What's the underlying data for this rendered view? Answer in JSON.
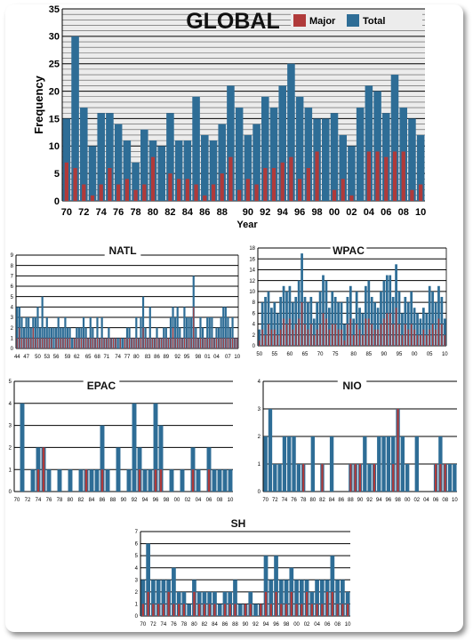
{
  "colors": {
    "major": "#b03a3a",
    "total": "#2e6d96",
    "grid": "#000000"
  },
  "legend": {
    "major_label": "Major",
    "total_label": "Total"
  },
  "chart_data": [
    {
      "type": "bar",
      "title": "GLOBAL",
      "xlabel": "Year",
      "ylabel": "Frequency",
      "ylim": [
        0,
        35
      ],
      "yticks": [
        0,
        5,
        10,
        15,
        20,
        25,
        30,
        35
      ],
      "grid": true,
      "legend_placement": "top-right",
      "x_start": 1970,
      "tick_labels": [
        "70",
        "72",
        "74",
        "76",
        "78",
        "80",
        "82",
        "84",
        "86",
        "88",
        "90",
        "92",
        "94",
        "96",
        "98",
        "00",
        "02",
        "04",
        "06",
        "08",
        "10"
      ],
      "series": [
        {
          "name": "Total",
          "values": [
            15,
            30,
            17,
            10,
            16,
            16,
            14,
            11,
            7,
            13,
            11,
            10,
            16,
            11,
            11,
            19,
            12,
            11,
            14,
            21,
            17,
            12,
            14,
            19,
            17,
            21,
            25,
            19,
            17,
            15,
            15,
            16,
            12,
            10,
            17,
            21,
            20,
            16,
            23,
            17,
            15,
            12
          ]
        },
        {
          "name": "Major",
          "values": [
            7,
            6,
            3,
            1,
            3,
            6,
            3,
            4,
            2,
            3,
            8,
            0,
            5,
            4,
            4,
            3,
            1,
            3,
            5,
            8,
            2,
            4,
            3,
            6,
            6,
            7,
            8,
            4,
            6,
            9,
            0,
            2,
            4,
            1,
            0,
            9,
            9,
            8,
            9,
            9,
            2,
            3
          ]
        }
      ]
    },
    {
      "type": "bar",
      "title": "NATL",
      "ylim": [
        0,
        9
      ],
      "yticks": [
        0,
        1,
        2,
        3,
        4,
        5,
        6,
        7,
        8,
        9
      ],
      "grid": true,
      "x_start": 1944,
      "tick_labels": [
        "44",
        "47",
        "50",
        "53",
        "56",
        "59",
        "62",
        "65",
        "68",
        "71",
        "74",
        "77",
        "80",
        "83",
        "86",
        "89",
        "92",
        "95",
        "98",
        "01",
        "04",
        "07",
        "10"
      ],
      "series": [
        {
          "name": "Total",
          "values": [
            4,
            4,
            3,
            2,
            3,
            3,
            2,
            3,
            3,
            4,
            2,
            5,
            2,
            3,
            2,
            2,
            2,
            2,
            3,
            2,
            2,
            3,
            2,
            2,
            1,
            1,
            2,
            2,
            2,
            3,
            2,
            1,
            3,
            2,
            1,
            3,
            1,
            3,
            1,
            1,
            2,
            1,
            1,
            1,
            1,
            1,
            1,
            1,
            2,
            2,
            1,
            1,
            3,
            1,
            3,
            5,
            2,
            1,
            4,
            1,
            1,
            2,
            1,
            1,
            2,
            2,
            1,
            3,
            4,
            3,
            4,
            2,
            1,
            4,
            3,
            3,
            3,
            7,
            2,
            1,
            3,
            2,
            1,
            3,
            3,
            3,
            1,
            2,
            2,
            3,
            4,
            4,
            3,
            2,
            3,
            1,
            1
          ]
        },
        {
          "name": "Major",
          "values": [
            1,
            2,
            1,
            1,
            1,
            1,
            1,
            2,
            1,
            1,
            1,
            1,
            1,
            1,
            1,
            1,
            0,
            1,
            1,
            1,
            1,
            1,
            1,
            1,
            0,
            1,
            1,
            1,
            1,
            1,
            1,
            1,
            1,
            1,
            1,
            1,
            1,
            1,
            1,
            1,
            1,
            1,
            1,
            1,
            0,
            1,
            0,
            1,
            1,
            1,
            1,
            1,
            1,
            1,
            1,
            2,
            1,
            1,
            1,
            1,
            1,
            1,
            1,
            1,
            1,
            1,
            1,
            1,
            2,
            1,
            1,
            1,
            1,
            1,
            1,
            1,
            1,
            4,
            1,
            1,
            1,
            1,
            1,
            1,
            1,
            1,
            1,
            1,
            1,
            1,
            1,
            1,
            1,
            1,
            1,
            1,
            1
          ]
        }
      ]
    },
    {
      "type": "bar",
      "title": "WPAC",
      "ylim": [
        0,
        18
      ],
      "yticks": [
        0,
        2,
        4,
        6,
        8,
        10,
        12,
        14,
        16,
        18
      ],
      "grid": true,
      "x_start": 1950,
      "tick_labels": [
        "50",
        "55",
        "60",
        "65",
        "70",
        "75",
        "80",
        "85",
        "90",
        "95",
        "00",
        "05",
        "10"
      ],
      "series": [
        {
          "name": "Total",
          "values": [
            3,
            8,
            9,
            10,
            7,
            8,
            6,
            9,
            11,
            10,
            11,
            8,
            9,
            12,
            17,
            9,
            8,
            9,
            5,
            8,
            10,
            13,
            12,
            7,
            10,
            9,
            8,
            8,
            4,
            9,
            11,
            5,
            10,
            7,
            6,
            11,
            12,
            9,
            8,
            7,
            10,
            12,
            13,
            13,
            9,
            15,
            10,
            6,
            9,
            8,
            10,
            7,
            6,
            5,
            7,
            6,
            11,
            10,
            8,
            11,
            9,
            5
          ]
        },
        {
          "name": "Major",
          "values": [
            1,
            3,
            2,
            4,
            3,
            3,
            2,
            3,
            5,
            4,
            5,
            3,
            4,
            5,
            8,
            4,
            3,
            4,
            2,
            3,
            4,
            6,
            5,
            3,
            4,
            4,
            3,
            3,
            1,
            4,
            5,
            2,
            4,
            3,
            2,
            5,
            5,
            4,
            3,
            3,
            4,
            5,
            6,
            6,
            4,
            7,
            4,
            2,
            4,
            3,
            4,
            3,
            2,
            2,
            3,
            2,
            3,
            4,
            3,
            5,
            4,
            2
          ]
        }
      ]
    },
    {
      "type": "bar",
      "title": "EPAC",
      "ylim": [
        0,
        5
      ],
      "yticks": [
        0,
        1,
        2,
        3,
        4,
        5
      ],
      "grid": true,
      "x_start": 1970,
      "tick_labels": [
        "70",
        "72",
        "74",
        "76",
        "78",
        "80",
        "82",
        "84",
        "86",
        "88",
        "90",
        "92",
        "94",
        "96",
        "98",
        "00",
        "02",
        "04",
        "06",
        "08",
        "10"
      ],
      "series": [
        {
          "name": "Total",
          "values": [
            0,
            4,
            0,
            1,
            2,
            2,
            1,
            0,
            1,
            0,
            1,
            0,
            1,
            1,
            1,
            1,
            3,
            1,
            0,
            2,
            0,
            1,
            4,
            2,
            1,
            1,
            4,
            3,
            0,
            1,
            0,
            1,
            0,
            2,
            1,
            0,
            2,
            1,
            1,
            1,
            1
          ]
        },
        {
          "name": "Major",
          "values": [
            0,
            0,
            0,
            0,
            1,
            2,
            0,
            0,
            0,
            0,
            0,
            0,
            0,
            1,
            0,
            0,
            1,
            0,
            0,
            0,
            0,
            0,
            0,
            1,
            0,
            0,
            1,
            1,
            0,
            0,
            0,
            0,
            0,
            1,
            0,
            0,
            1,
            0,
            0,
            0,
            0
          ]
        }
      ]
    },
    {
      "type": "bar",
      "title": "NIO",
      "ylim": [
        0,
        4
      ],
      "yticks": [
        0,
        1,
        2,
        3,
        4
      ],
      "grid": true,
      "x_start": 1970,
      "tick_labels": [
        "70",
        "72",
        "74",
        "76",
        "78",
        "80",
        "82",
        "84",
        "86",
        "88",
        "90",
        "92",
        "94",
        "96",
        "98",
        "00",
        "02",
        "04",
        "06",
        "08",
        "10"
      ],
      "series": [
        {
          "name": "Total",
          "values": [
            2,
            3,
            1,
            1,
            2,
            2,
            2,
            1,
            1,
            0,
            2,
            0,
            1,
            0,
            2,
            0,
            0,
            0,
            1,
            1,
            1,
            2,
            1,
            1,
            2,
            2,
            2,
            2,
            3,
            2,
            1,
            0,
            2,
            0,
            0,
            0,
            1,
            2,
            1,
            1,
            1
          ]
        },
        {
          "name": "Major",
          "values": [
            0,
            0,
            0,
            0,
            0,
            0,
            0,
            0,
            1,
            0,
            0,
            0,
            1,
            0,
            0,
            0,
            0,
            0,
            1,
            1,
            1,
            0,
            0,
            1,
            0,
            0,
            0,
            1,
            3,
            0,
            0,
            0,
            0,
            0,
            0,
            0,
            1,
            1,
            1,
            0,
            0
          ]
        }
      ]
    },
    {
      "type": "bar",
      "title": "SH",
      "ylim": [
        0,
        7
      ],
      "yticks": [
        0,
        1,
        2,
        3,
        4,
        5,
        6,
        7
      ],
      "grid": true,
      "x_start": 1970,
      "tick_labels": [
        "70",
        "72",
        "74",
        "76",
        "78",
        "80",
        "82",
        "84",
        "86",
        "88",
        "90",
        "92",
        "94",
        "96",
        "98",
        "00",
        "02",
        "04",
        "06",
        "08",
        "10"
      ],
      "series": [
        {
          "name": "Total",
          "values": [
            3,
            6,
            3,
            3,
            3,
            3,
            4,
            2,
            2,
            1,
            3,
            2,
            2,
            2,
            2,
            1,
            2,
            2,
            3,
            1,
            1,
            2,
            1,
            1,
            5,
            3,
            5,
            3,
            3,
            4,
            3,
            3,
            3,
            2,
            3,
            3,
            3,
            5,
            3,
            3,
            2
          ]
        },
        {
          "name": "Major",
          "values": [
            1,
            2,
            1,
            1,
            1,
            2,
            1,
            1,
            1,
            0,
            2,
            1,
            1,
            1,
            1,
            0,
            1,
            1,
            1,
            0,
            1,
            1,
            0,
            1,
            2,
            1,
            2,
            1,
            1,
            2,
            1,
            1,
            2,
            1,
            1,
            1,
            2,
            2,
            1,
            1,
            1
          ]
        }
      ]
    }
  ]
}
